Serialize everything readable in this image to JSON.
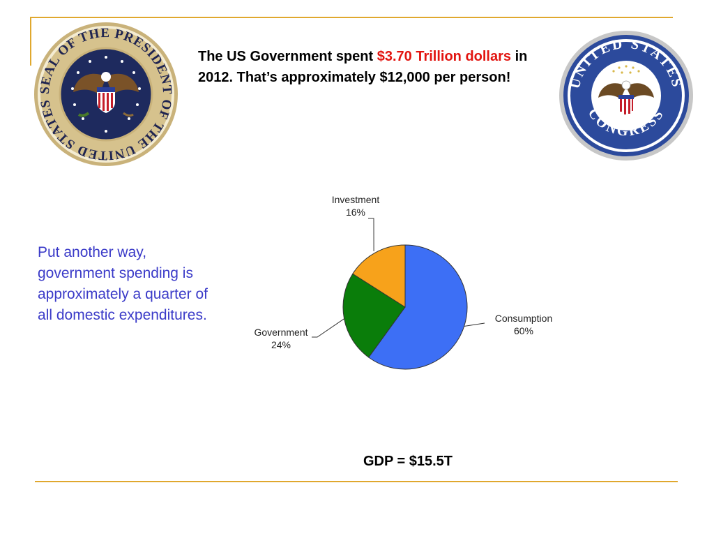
{
  "headline": {
    "part1": "The US Government spent ",
    "highlight": "$3.70 Trillion dollars",
    "part2": " in 2012.  That’s approximately $12,000 per person!",
    "highlight_color": "#e2140f"
  },
  "side_text": "Put another way, government spending is approximately a quarter of all domestic expenditures.",
  "gdp_label": "GDP = $15.5T",
  "president_seal": {
    "icon": "presidential-seal",
    "lettering": "SEAL OF THE PRESIDENT OF THE UNITED STATES"
  },
  "congress_seal": {
    "icon": "congress-seal",
    "lettering_top": "UNITED STATES",
    "lettering_bottom": "CONGRESS"
  },
  "colors": {
    "accent_rule": "#e0a82e",
    "side_text": "#3a3ac8"
  },
  "chart_data": {
    "type": "pie",
    "title": "",
    "slices": [
      {
        "name": "Consumption",
        "value": 60,
        "label": "60%",
        "color": "#3d6ff5"
      },
      {
        "name": "Government",
        "value": 24,
        "label": "24%",
        "color": "#0a7d0a"
      },
      {
        "name": "Investment",
        "value": 16,
        "label": "16%",
        "color": "#f7a21b"
      }
    ]
  }
}
